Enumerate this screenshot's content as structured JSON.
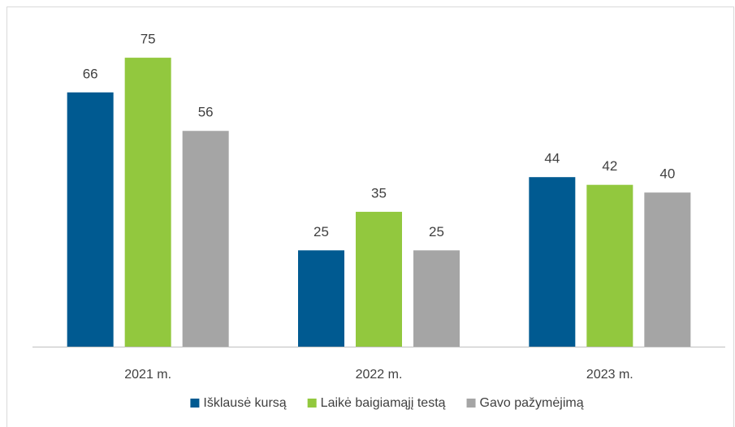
{
  "chart_data": {
    "type": "bar",
    "categories": [
      "2021 m.",
      "2022 m.",
      "2023 m."
    ],
    "series": [
      {
        "name": "Išklausė kursą",
        "color": "#005a91",
        "values": [
          66,
          25,
          44
        ]
      },
      {
        "name": "Laikė baigiamąjį testą",
        "color": "#92c83e",
        "values": [
          75,
          35,
          42
        ]
      },
      {
        "name": "Gavo pažymėjimą",
        "color": "#a5a5a5",
        "values": [
          56,
          25,
          40
        ]
      }
    ],
    "ylim": [
      0,
      88
    ],
    "legend": "bottom"
  }
}
